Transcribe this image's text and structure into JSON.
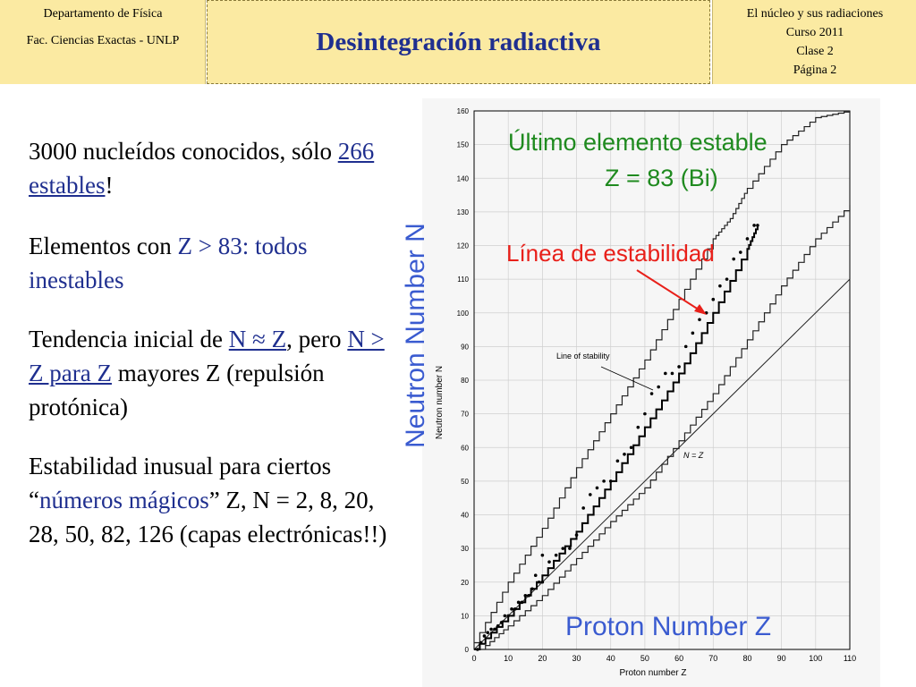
{
  "header": {
    "left_line1": "Departamento de Física",
    "left_line2": "Fac. Ciencias Exactas - UNLP",
    "title": "Desintegración radiactiva",
    "right_lines": [
      "El núcleo y sus radiaciones",
      "Curso 2011",
      "Clase 2",
      "Página 2"
    ]
  },
  "bullets": {
    "b1_a": "3000 nucleídos conocidos, sólo ",
    "b1_link": "266 estables",
    "b1_c": "!",
    "b2_a": "Elementos con ",
    "b2_b": "Z > 83: todos inestables",
    "b3_a": "Tendencia inicial de ",
    "b3_link1": "N ≈ Z",
    "b3_b": ", pero ",
    "b3_link2": "N > Z para Z",
    "b3_c": " mayores Z (repulsión protónica)",
    "b4_a": "Estabilidad inusual para ciertos “",
    "b4_b": "números mágicos",
    "b4_c": "” Z, N = 2, 8, 20, 28, 50, 82, 126 (capas electrónicas!!)"
  },
  "overlay": {
    "green_line1": "Último elemento estable",
    "green_line2": "Z = 83 (Bi)",
    "red_label": "Línea de estabilidad",
    "neutron_label": "Neutron Number N",
    "proton_label": "Proton Number Z"
  },
  "colors": {
    "header_bg": "#fbeaa2",
    "title_blue": "#1f2f8f",
    "green": "#1f8a1f",
    "red": "#e8201a",
    "overlay_blue": "#3a5bd0"
  },
  "chart_data": {
    "type": "scatter",
    "xlabel": "Proton number Z",
    "ylabel": "Neutron number N",
    "xlim": [
      0,
      110
    ],
    "ylim": [
      0,
      160
    ],
    "xticks": [
      "0",
      "10",
      "20",
      "30",
      "40",
      "50",
      "60",
      "70",
      "80",
      "90",
      "100",
      "110"
    ],
    "yticks": [
      "0",
      "10",
      "20",
      "30",
      "40",
      "50",
      "60",
      "70",
      "80",
      "90",
      "100",
      "110",
      "120",
      "130",
      "140",
      "150",
      "160"
    ],
    "grid": true,
    "annotations": {
      "stability": "Line of stability",
      "nz": "N = Z"
    },
    "reference_line": {
      "x": [
        0,
        110
      ],
      "y": [
        0,
        110
      ]
    },
    "stability_line": {
      "x": [
        0,
        10,
        20,
        30,
        40,
        50,
        60,
        70,
        80,
        83
      ],
      "y": [
        0,
        10,
        22,
        35,
        50,
        66,
        82,
        100,
        119,
        126
      ]
    },
    "upper_boundary": {
      "x": [
        0,
        10,
        20,
        30,
        40,
        50,
        60,
        70,
        75,
        80,
        90,
        100,
        110
      ],
      "y": [
        2,
        20,
        36,
        54,
        70,
        86,
        104,
        122,
        128,
        137,
        150,
        158,
        160
      ]
    },
    "lower_boundary": {
      "x": [
        2,
        10,
        20,
        30,
        40,
        50,
        60,
        70,
        80,
        90,
        100,
        110
      ],
      "y": [
        0,
        7,
        16,
        27,
        38,
        48,
        62,
        76,
        92,
        108,
        122,
        132
      ]
    },
    "stable_nuclides": [
      {
        "x": 1,
        "y": 0
      },
      {
        "x": 2,
        "y": 2
      },
      {
        "x": 3,
        "y": 4
      },
      {
        "x": 4,
        "y": 5
      },
      {
        "x": 5,
        "y": 6
      },
      {
        "x": 6,
        "y": 6
      },
      {
        "x": 7,
        "y": 7
      },
      {
        "x": 8,
        "y": 8
      },
      {
        "x": 9,
        "y": 10
      },
      {
        "x": 10,
        "y": 10
      },
      {
        "x": 11,
        "y": 12
      },
      {
        "x": 12,
        "y": 12
      },
      {
        "x": 13,
        "y": 14
      },
      {
        "x": 14,
        "y": 14
      },
      {
        "x": 15,
        "y": 16
      },
      {
        "x": 16,
        "y": 16
      },
      {
        "x": 17,
        "y": 18
      },
      {
        "x": 18,
        "y": 22
      },
      {
        "x": 19,
        "y": 20
      },
      {
        "x": 20,
        "y": 20
      },
      {
        "x": 20,
        "y": 28
      },
      {
        "x": 22,
        "y": 26
      },
      {
        "x": 24,
        "y": 28
      },
      {
        "x": 26,
        "y": 30
      },
      {
        "x": 28,
        "y": 30
      },
      {
        "x": 30,
        "y": 34
      },
      {
        "x": 32,
        "y": 42
      },
      {
        "x": 34,
        "y": 46
      },
      {
        "x": 36,
        "y": 48
      },
      {
        "x": 38,
        "y": 50
      },
      {
        "x": 40,
        "y": 50
      },
      {
        "x": 42,
        "y": 56
      },
      {
        "x": 44,
        "y": 58
      },
      {
        "x": 46,
        "y": 60
      },
      {
        "x": 48,
        "y": 66
      },
      {
        "x": 50,
        "y": 70
      },
      {
        "x": 52,
        "y": 76
      },
      {
        "x": 54,
        "y": 78
      },
      {
        "x": 56,
        "y": 82
      },
      {
        "x": 58,
        "y": 82
      },
      {
        "x": 60,
        "y": 84
      },
      {
        "x": 62,
        "y": 90
      },
      {
        "x": 64,
        "y": 94
      },
      {
        "x": 66,
        "y": 98
      },
      {
        "x": 68,
        "y": 100
      },
      {
        "x": 70,
        "y": 104
      },
      {
        "x": 72,
        "y": 108
      },
      {
        "x": 74,
        "y": 110
      },
      {
        "x": 76,
        "y": 116
      },
      {
        "x": 78,
        "y": 118
      },
      {
        "x": 80,
        "y": 122
      },
      {
        "x": 82,
        "y": 126
      },
      {
        "x": 83,
        "y": 126
      }
    ]
  }
}
